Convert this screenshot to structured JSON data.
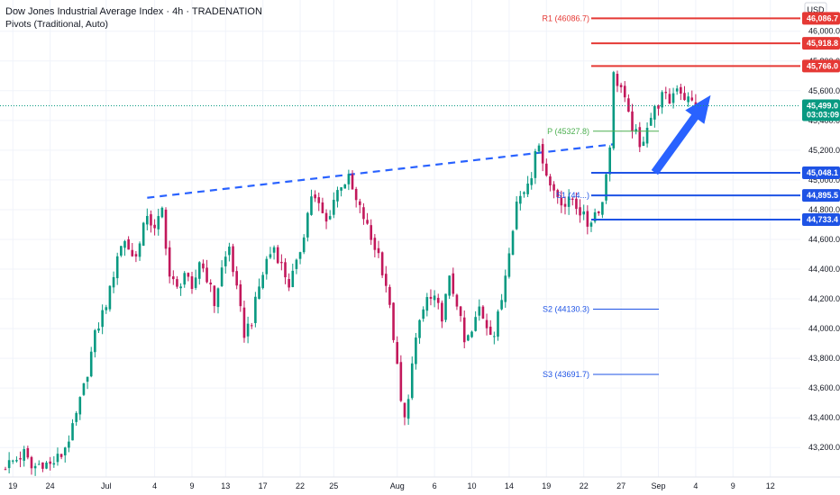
{
  "header": {
    "title": "Dow Jones Industrial Average Index · 4h · TRADENATION",
    "indicator": "Pivots (Traditional, Auto)"
  },
  "axis": {
    "currency": "USD"
  },
  "colors": {
    "up": "#089981",
    "down": "#c2185b",
    "trendline": "#2962ff",
    "resistance": "#e53935",
    "support": "#1e53e5",
    "pivot": "#4caf50",
    "price": "#089981",
    "arrow": "#2962ff"
  },
  "chart_data": {
    "type": "candlestick",
    "title": "Dow Jones Industrial Average Index · 4h · TRADENATION",
    "ylim": [
      43050,
      46180
    ],
    "y_ticks": [
      43200,
      43400,
      43600,
      43800,
      44000,
      44200,
      44400,
      44600,
      44800,
      45000,
      45200,
      45400,
      45600,
      45800,
      46000
    ],
    "y_tick_labels": [
      "43,200.0",
      "43,400.0",
      "43,600.0",
      "43,800.0",
      "44,000.0",
      "44,200.0",
      "44,400.0",
      "44,600.0",
      "44,800.0",
      "45,000.0",
      "45,200.0",
      "45,400.0",
      "45,600.0",
      "45,800.0",
      "46,000.0"
    ],
    "x_ticks": [
      {
        "label": "19",
        "bar": 2
      },
      {
        "label": "24",
        "bar": 12
      },
      {
        "label": "Jul",
        "bar": 27
      },
      {
        "label": "4",
        "bar": 40
      },
      {
        "label": "9",
        "bar": 50
      },
      {
        "label": "13",
        "bar": 59
      },
      {
        "label": "17",
        "bar": 69
      },
      {
        "label": "22",
        "bar": 79
      },
      {
        "label": "25",
        "bar": 88
      },
      {
        "label": "Aug",
        "bar": 105
      },
      {
        "label": "6",
        "bar": 115
      },
      {
        "label": "10",
        "bar": 125
      },
      {
        "label": "14",
        "bar": 135
      },
      {
        "label": "19",
        "bar": 145
      },
      {
        "label": "22",
        "bar": 155
      },
      {
        "label": "27",
        "bar": 165
      },
      {
        "label": "Sep",
        "bar": 175
      },
      {
        "label": "4",
        "bar": 185
      },
      {
        "label": "9",
        "bar": 195
      },
      {
        "label": "12",
        "bar": 205
      }
    ],
    "anchors": [
      [
        0,
        43080
      ],
      [
        3,
        43120
      ],
      [
        5,
        43160
      ],
      [
        7,
        43060
      ],
      [
        10,
        43100
      ],
      [
        12,
        43080
      ],
      [
        15,
        43150
      ],
      [
        18,
        43320
      ],
      [
        21,
        43600
      ],
      [
        24,
        43950
      ],
      [
        26,
        44100
      ],
      [
        28,
        44250
      ],
      [
        30,
        44500
      ],
      [
        32,
        44600
      ],
      [
        34,
        44480
      ],
      [
        36,
        44560
      ],
      [
        38,
        44780
      ],
      [
        40,
        44650
      ],
      [
        42,
        44800
      ],
      [
        44,
        44350
      ],
      [
        46,
        44260
      ],
      [
        48,
        44380
      ],
      [
        50,
        44230
      ],
      [
        52,
        44460
      ],
      [
        54,
        44350
      ],
      [
        56,
        44170
      ],
      [
        58,
        44400
      ],
      [
        60,
        44550
      ],
      [
        62,
        44250
      ],
      [
        64,
        43970
      ],
      [
        66,
        44060
      ],
      [
        68,
        44280
      ],
      [
        70,
        44460
      ],
      [
        72,
        44550
      ],
      [
        74,
        44420
      ],
      [
        76,
        44300
      ],
      [
        78,
        44420
      ],
      [
        80,
        44650
      ],
      [
        82,
        44900
      ],
      [
        84,
        44820
      ],
      [
        86,
        44710
      ],
      [
        88,
        44870
      ],
      [
        90,
        44980
      ],
      [
        92,
        45000
      ],
      [
        94,
        44850
      ],
      [
        96,
        44750
      ],
      [
        98,
        44600
      ],
      [
        100,
        44500
      ],
      [
        102,
        44300
      ],
      [
        104,
        43950
      ],
      [
        106,
        43500
      ],
      [
        107,
        43380
      ],
      [
        109,
        43750
      ],
      [
        111,
        44050
      ],
      [
        113,
        44200
      ],
      [
        115,
        44180
      ],
      [
        117,
        44090
      ],
      [
        119,
        44320
      ],
      [
        121,
        44180
      ],
      [
        123,
        43900
      ],
      [
        125,
        43970
      ],
      [
        127,
        44140
      ],
      [
        129,
        44030
      ],
      [
        131,
        43960
      ],
      [
        133,
        44200
      ],
      [
        135,
        44550
      ],
      [
        137,
        44850
      ],
      [
        139,
        44930
      ],
      [
        141,
        45050
      ],
      [
        142,
        45230
      ],
      [
        144,
        45150
      ],
      [
        146,
        44960
      ],
      [
        148,
        44900
      ],
      [
        150,
        44830
      ],
      [
        152,
        44870
      ],
      [
        154,
        44790
      ],
      [
        156,
        44700
      ],
      [
        158,
        44780
      ],
      [
        160,
        44850
      ],
      [
        162,
        45250
      ],
      [
        163,
        45700
      ],
      [
        165,
        45620
      ],
      [
        167,
        45420
      ],
      [
        169,
        45300
      ],
      [
        170,
        45200
      ],
      [
        172,
        45380
      ],
      [
        174,
        45470
      ],
      [
        176,
        45560
      ],
      [
        178,
        45530
      ],
      [
        180,
        45640
      ],
      [
        182,
        45560
      ],
      [
        184,
        45520
      ],
      [
        185,
        45470
      ]
    ],
    "last_price": 45499.0,
    "last_price_label": "45,499.0",
    "countdown": "03:03:09",
    "pivots": [
      {
        "name": "R1",
        "label": "R1 (46086.7)",
        "value": 46086.7
      },
      {
        "name": "P",
        "label": "P (45327.8)",
        "value": 45327.8
      },
      {
        "name": "S1",
        "label": "S1 (44...)",
        "value": 44895.5
      },
      {
        "name": "S2",
        "label": "S2 (44130.3)",
        "value": 44130.3
      },
      {
        "name": "S3",
        "label": "S3 (43691.7)",
        "value": 43691.7
      }
    ],
    "resistance_levels": [
      {
        "value": 46086.7,
        "label": "46,086.7"
      },
      {
        "value": 45918.8,
        "label": "45,918.8"
      },
      {
        "value": 45766.0,
        "label": "45,766.0"
      }
    ],
    "support_levels": [
      {
        "value": 45048.1,
        "label": "45,048.1"
      },
      {
        "value": 44895.5,
        "label": "44,895.5"
      },
      {
        "value": 44733.4,
        "label": "44,733.4"
      }
    ],
    "trendline": {
      "start": [
        38,
        44880
      ],
      "end": [
        163,
        45240
      ]
    },
    "arrow": {
      "start": [
        174,
        45050
      ],
      "end": [
        189,
        45570
      ]
    }
  }
}
